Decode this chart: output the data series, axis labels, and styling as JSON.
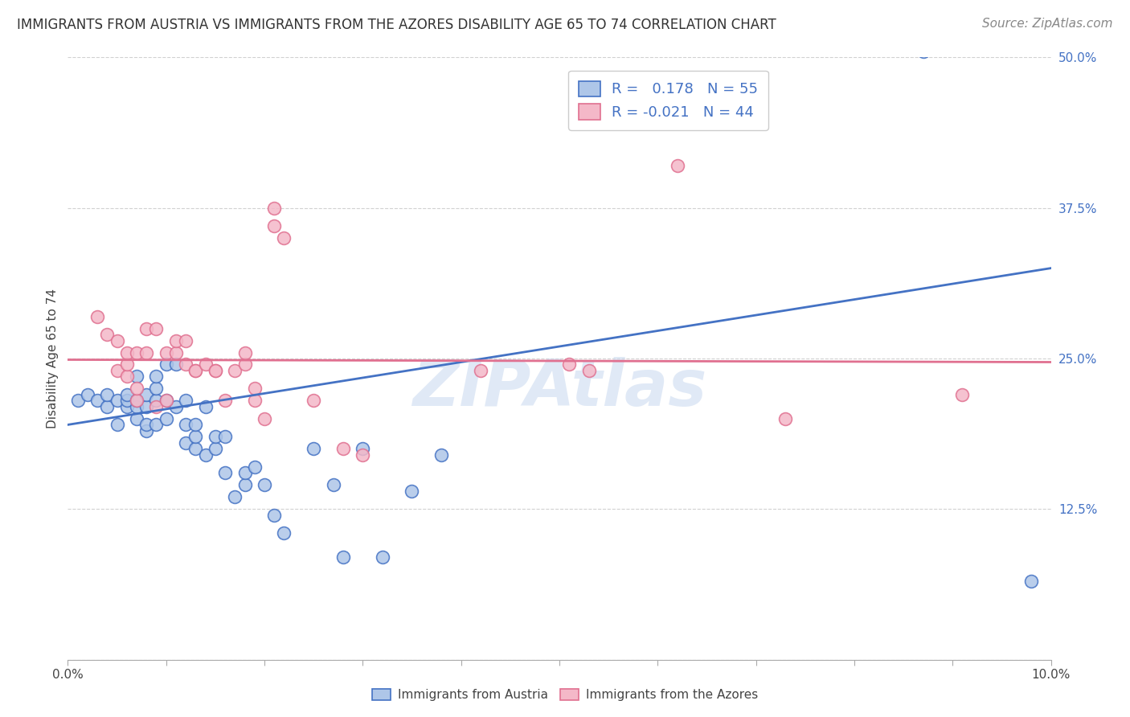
{
  "title": "IMMIGRANTS FROM AUSTRIA VS IMMIGRANTS FROM THE AZORES DISABILITY AGE 65 TO 74 CORRELATION CHART",
  "source": "Source: ZipAtlas.com",
  "ylabel": "Disability Age 65 to 74",
  "xlim": [
    0.0,
    0.1
  ],
  "ylim": [
    0.0,
    0.5
  ],
  "xticks": [
    0.0,
    0.01,
    0.02,
    0.03,
    0.04,
    0.05,
    0.06,
    0.07,
    0.08,
    0.09,
    0.1
  ],
  "yticks": [
    0.0,
    0.125,
    0.25,
    0.375,
    0.5
  ],
  "yticklabels": [
    "",
    "12.5%",
    "25.0%",
    "37.5%",
    "50.0%"
  ],
  "austria_color": "#aec6e8",
  "azores_color": "#f4b8c8",
  "austria_edge_color": "#4472c4",
  "azores_edge_color": "#e07090",
  "austria_line_color": "#4472c4",
  "azores_line_color": "#e07090",
  "watermark": "ZIPAtlas",
  "legend_austria_R": "0.178",
  "legend_austria_N": "55",
  "legend_azores_R": "-0.021",
  "legend_azores_N": "44",
  "austria_scatter_x": [
    0.001,
    0.002,
    0.003,
    0.004,
    0.004,
    0.005,
    0.005,
    0.006,
    0.006,
    0.006,
    0.007,
    0.007,
    0.007,
    0.007,
    0.008,
    0.008,
    0.008,
    0.008,
    0.009,
    0.009,
    0.009,
    0.009,
    0.01,
    0.01,
    0.01,
    0.011,
    0.011,
    0.012,
    0.012,
    0.012,
    0.013,
    0.013,
    0.013,
    0.014,
    0.014,
    0.015,
    0.015,
    0.016,
    0.016,
    0.017,
    0.018,
    0.018,
    0.019,
    0.02,
    0.021,
    0.022,
    0.025,
    0.027,
    0.028,
    0.03,
    0.032,
    0.035,
    0.038,
    0.087,
    0.098
  ],
  "austria_scatter_y": [
    0.215,
    0.22,
    0.215,
    0.21,
    0.22,
    0.195,
    0.215,
    0.21,
    0.215,
    0.22,
    0.2,
    0.21,
    0.215,
    0.235,
    0.19,
    0.195,
    0.21,
    0.22,
    0.195,
    0.215,
    0.225,
    0.235,
    0.2,
    0.215,
    0.245,
    0.21,
    0.245,
    0.18,
    0.195,
    0.215,
    0.175,
    0.185,
    0.195,
    0.17,
    0.21,
    0.175,
    0.185,
    0.155,
    0.185,
    0.135,
    0.145,
    0.155,
    0.16,
    0.145,
    0.12,
    0.105,
    0.175,
    0.145,
    0.085,
    0.175,
    0.085,
    0.14,
    0.17,
    0.505,
    0.065
  ],
  "azores_scatter_x": [
    0.003,
    0.004,
    0.005,
    0.005,
    0.006,
    0.006,
    0.006,
    0.007,
    0.007,
    0.007,
    0.008,
    0.008,
    0.009,
    0.009,
    0.01,
    0.01,
    0.011,
    0.011,
    0.012,
    0.012,
    0.013,
    0.013,
    0.014,
    0.015,
    0.015,
    0.016,
    0.017,
    0.018,
    0.018,
    0.019,
    0.019,
    0.02,
    0.021,
    0.021,
    0.022,
    0.025,
    0.028,
    0.03,
    0.042,
    0.051,
    0.053,
    0.062,
    0.073,
    0.091
  ],
  "azores_scatter_y": [
    0.285,
    0.27,
    0.24,
    0.265,
    0.235,
    0.245,
    0.255,
    0.215,
    0.225,
    0.255,
    0.255,
    0.275,
    0.21,
    0.275,
    0.215,
    0.255,
    0.255,
    0.265,
    0.245,
    0.265,
    0.24,
    0.24,
    0.245,
    0.24,
    0.24,
    0.215,
    0.24,
    0.245,
    0.255,
    0.215,
    0.225,
    0.2,
    0.36,
    0.375,
    0.35,
    0.215,
    0.175,
    0.17,
    0.24,
    0.245,
    0.24,
    0.41,
    0.2,
    0.22
  ],
  "austria_trend_x": [
    0.0,
    0.1
  ],
  "austria_trend_y": [
    0.195,
    0.325
  ],
  "azores_trend_x": [
    0.0,
    0.1
  ],
  "azores_trend_y": [
    0.249,
    0.247
  ],
  "background_color": "#ffffff",
  "grid_color": "#cccccc",
  "title_fontsize": 12,
  "tick_fontsize": 11,
  "legend_fontsize": 13,
  "source_fontsize": 11,
  "ylabel_fontsize": 11
}
